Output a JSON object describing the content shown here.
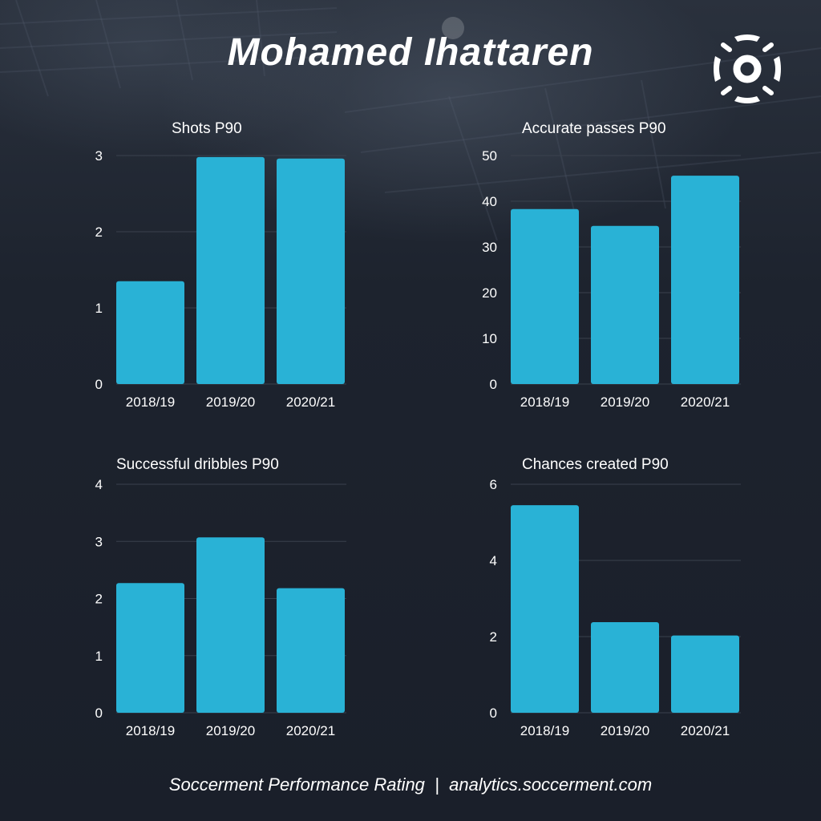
{
  "header": {
    "player_name": "Mohamed Ihattaren"
  },
  "icons": {
    "logo": "soccerment-ball-logo"
  },
  "colors": {
    "bar": "#29b2d6",
    "background": "#1b202b",
    "text": "#ffffff",
    "grid": "#3a414d"
  },
  "footer": {
    "left": "Soccerment Performance Rating",
    "separator": "|",
    "right": "analytics.soccerment.com"
  },
  "chart_data": [
    {
      "id": "shots",
      "type": "bar",
      "title": "Shots P90",
      "categories": [
        "2018/19",
        "2019/20",
        "2020/21"
      ],
      "values": [
        1.35,
        2.98,
        2.96
      ],
      "ylim": [
        0,
        3
      ],
      "yticks": [
        0,
        1,
        2,
        3
      ],
      "grid": true
    },
    {
      "id": "passes",
      "type": "bar",
      "title": "Accurate passes P90",
      "categories": [
        "2018/19",
        "2019/20",
        "2020/21"
      ],
      "values": [
        38.3,
        34.6,
        45.6
      ],
      "ylim": [
        0,
        50
      ],
      "yticks": [
        0,
        10,
        20,
        30,
        40,
        50
      ],
      "grid": true
    },
    {
      "id": "dribbles",
      "type": "bar",
      "title": "Successful dribbles P90",
      "categories": [
        "2018/19",
        "2019/20",
        "2020/21"
      ],
      "values": [
        2.27,
        3.07,
        2.18
      ],
      "ylim": [
        0,
        4
      ],
      "yticks": [
        0,
        1,
        2,
        3,
        4
      ],
      "grid": true
    },
    {
      "id": "chances",
      "type": "bar",
      "title": "Chances created P90",
      "categories": [
        "2018/19",
        "2019/20",
        "2020/21"
      ],
      "values": [
        5.45,
        2.38,
        2.03
      ],
      "ylim": [
        0,
        6
      ],
      "yticks": [
        0,
        2,
        4,
        6
      ],
      "grid": true
    }
  ]
}
